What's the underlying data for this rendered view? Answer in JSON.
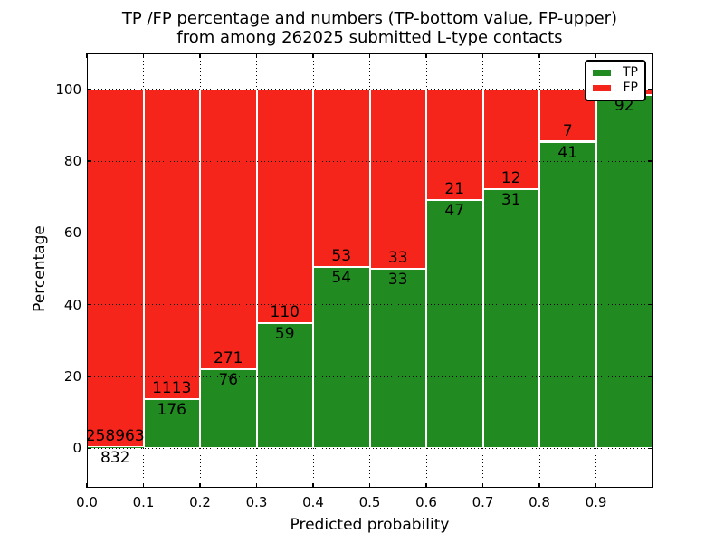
{
  "title": {
    "line1": "TP /FP percentage and numbers (TP-bottom value, FP-upper)",
    "line2": "from among 262025 submitted L-type contacts"
  },
  "axes": {
    "xlabel": "Predicted probability",
    "ylabel": "Percentage",
    "xticks": [
      "0.0",
      "0.1",
      "0.2",
      "0.3",
      "0.4",
      "0.5",
      "0.6",
      "0.7",
      "0.8",
      "0.9"
    ],
    "yticks": [
      "0",
      "20",
      "40",
      "60",
      "80",
      "100"
    ],
    "xlim": [
      0.0,
      1.0
    ],
    "ylim": [
      -11,
      110
    ]
  },
  "legend": {
    "items": [
      {
        "label": "TP",
        "color": "#218A21"
      },
      {
        "label": "FP",
        "color": "#F5251B"
      }
    ]
  },
  "chart_data": {
    "type": "bar",
    "variant": "stacked-percentage",
    "title": "TP /FP percentage and numbers (TP-bottom value, FP-upper) from among 262025 submitted L-type contacts",
    "xlabel": "Predicted probability",
    "ylabel": "Percentage",
    "xlim": [
      0.0,
      1.0
    ],
    "ylim": [
      -11,
      110
    ],
    "grid": "dotted",
    "legend_position": "upper-right",
    "bin_width": 0.1,
    "total_contacts": 262025,
    "colors": {
      "tp": "#218A21",
      "fp": "#F5251B"
    },
    "bins": [
      {
        "x0": 0.0,
        "x1": 0.1,
        "tp": 832,
        "fp": 258963,
        "tp_pct": 0.32
      },
      {
        "x0": 0.1,
        "x1": 0.2,
        "tp": 176,
        "fp": 1113,
        "tp_pct": 13.65
      },
      {
        "x0": 0.2,
        "x1": 0.3,
        "tp": 76,
        "fp": 271,
        "tp_pct": 21.9
      },
      {
        "x0": 0.3,
        "x1": 0.4,
        "tp": 59,
        "fp": 110,
        "tp_pct": 34.91
      },
      {
        "x0": 0.4,
        "x1": 0.5,
        "tp": 54,
        "fp": 53,
        "tp_pct": 50.47
      },
      {
        "x0": 0.5,
        "x1": 0.6,
        "tp": 33,
        "fp": 33,
        "tp_pct": 50.0
      },
      {
        "x0": 0.6,
        "x1": 0.7,
        "tp": 47,
        "fp": 21,
        "tp_pct": 69.12
      },
      {
        "x0": 0.7,
        "x1": 0.8,
        "tp": 31,
        "fp": 12,
        "tp_pct": 72.09
      },
      {
        "x0": 0.8,
        "x1": 0.9,
        "tp": 41,
        "fp": 7,
        "tp_pct": 85.42
      },
      {
        "x0": 0.9,
        "x1": 1.0,
        "tp": 92,
        "fp": null,
        "tp_pct": 98.5
      }
    ]
  }
}
